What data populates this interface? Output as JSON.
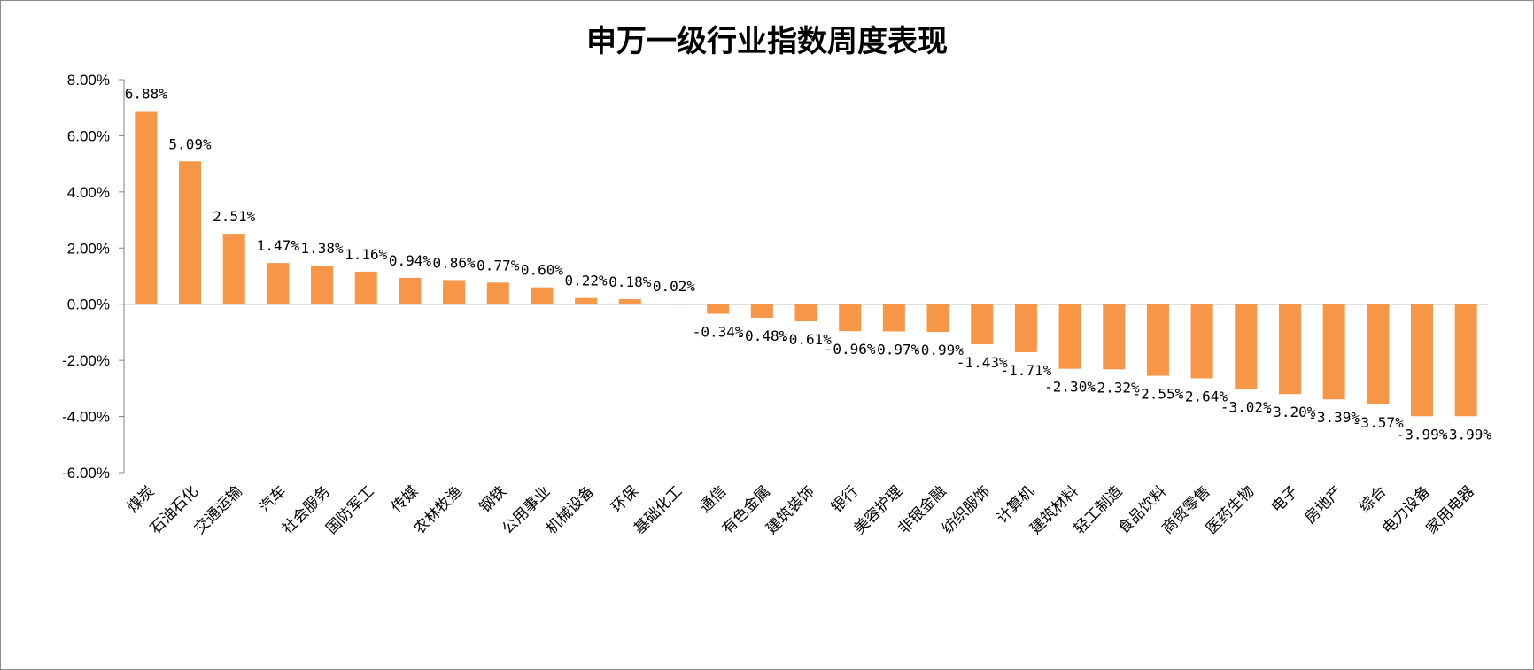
{
  "chart_data": {
    "type": "bar",
    "title": "申万一级行业指数周度表现",
    "bar_color": "#F79646",
    "ylim": [
      -6,
      8
    ],
    "yticks": [
      "8.00%",
      "6.00%",
      "4.00%",
      "2.00%",
      "0.00%",
      "-2.00%",
      "-4.00%",
      "-6.00%"
    ],
    "ytick_values": [
      8,
      6,
      4,
      2,
      0,
      -2,
      -4,
      -6
    ],
    "categories": [
      "煤炭",
      "石油石化",
      "交通运输",
      "汽车",
      "社会服务",
      "国防军工",
      "传媒",
      "农林牧渔",
      "钢铁",
      "公用事业",
      "机械设备",
      "环保",
      "基础化工",
      "通信",
      "有色金属",
      "建筑装饰",
      "银行",
      "美容护理",
      "非银金融",
      "纺织服饰",
      "计算机",
      "建筑材料",
      "轻工制造",
      "食品饮料",
      "商贸零售",
      "医药生物",
      "电子",
      "房地产",
      "综合",
      "电力设备",
      "家用电器"
    ],
    "values": [
      6.88,
      5.09,
      2.51,
      1.47,
      1.38,
      1.16,
      0.94,
      0.86,
      0.77,
      0.6,
      0.22,
      0.18,
      0.02,
      -0.34,
      -0.48,
      -0.61,
      -0.96,
      -0.97,
      -0.99,
      -1.43,
      -1.71,
      -2.3,
      -2.32,
      -2.55,
      -2.64,
      -3.02,
      -3.2,
      -3.39,
      -3.57,
      -3.99,
      -3.99
    ],
    "labels": [
      "6.88%",
      "5.09%",
      "2.51%",
      "1.47%",
      "1.38%",
      "1.16%",
      "0.94%",
      "0.86%",
      "0.77%",
      "0.60%",
      "0.22%",
      "0.18%",
      "0.02%",
      "-0.34%",
      "-0.48%",
      "-0.61%",
      "-0.96%",
      "-0.97%",
      "-0.99%",
      "-1.43%",
      "-1.71%",
      "-2.30%",
      "-2.32%",
      "-2.55%",
      "-2.64%",
      "-3.02%",
      "-3.20%",
      "-3.39%",
      "-3.57%",
      "-3.99%",
      "-3.99%"
    ],
    "grid": false,
    "legend": "none"
  }
}
